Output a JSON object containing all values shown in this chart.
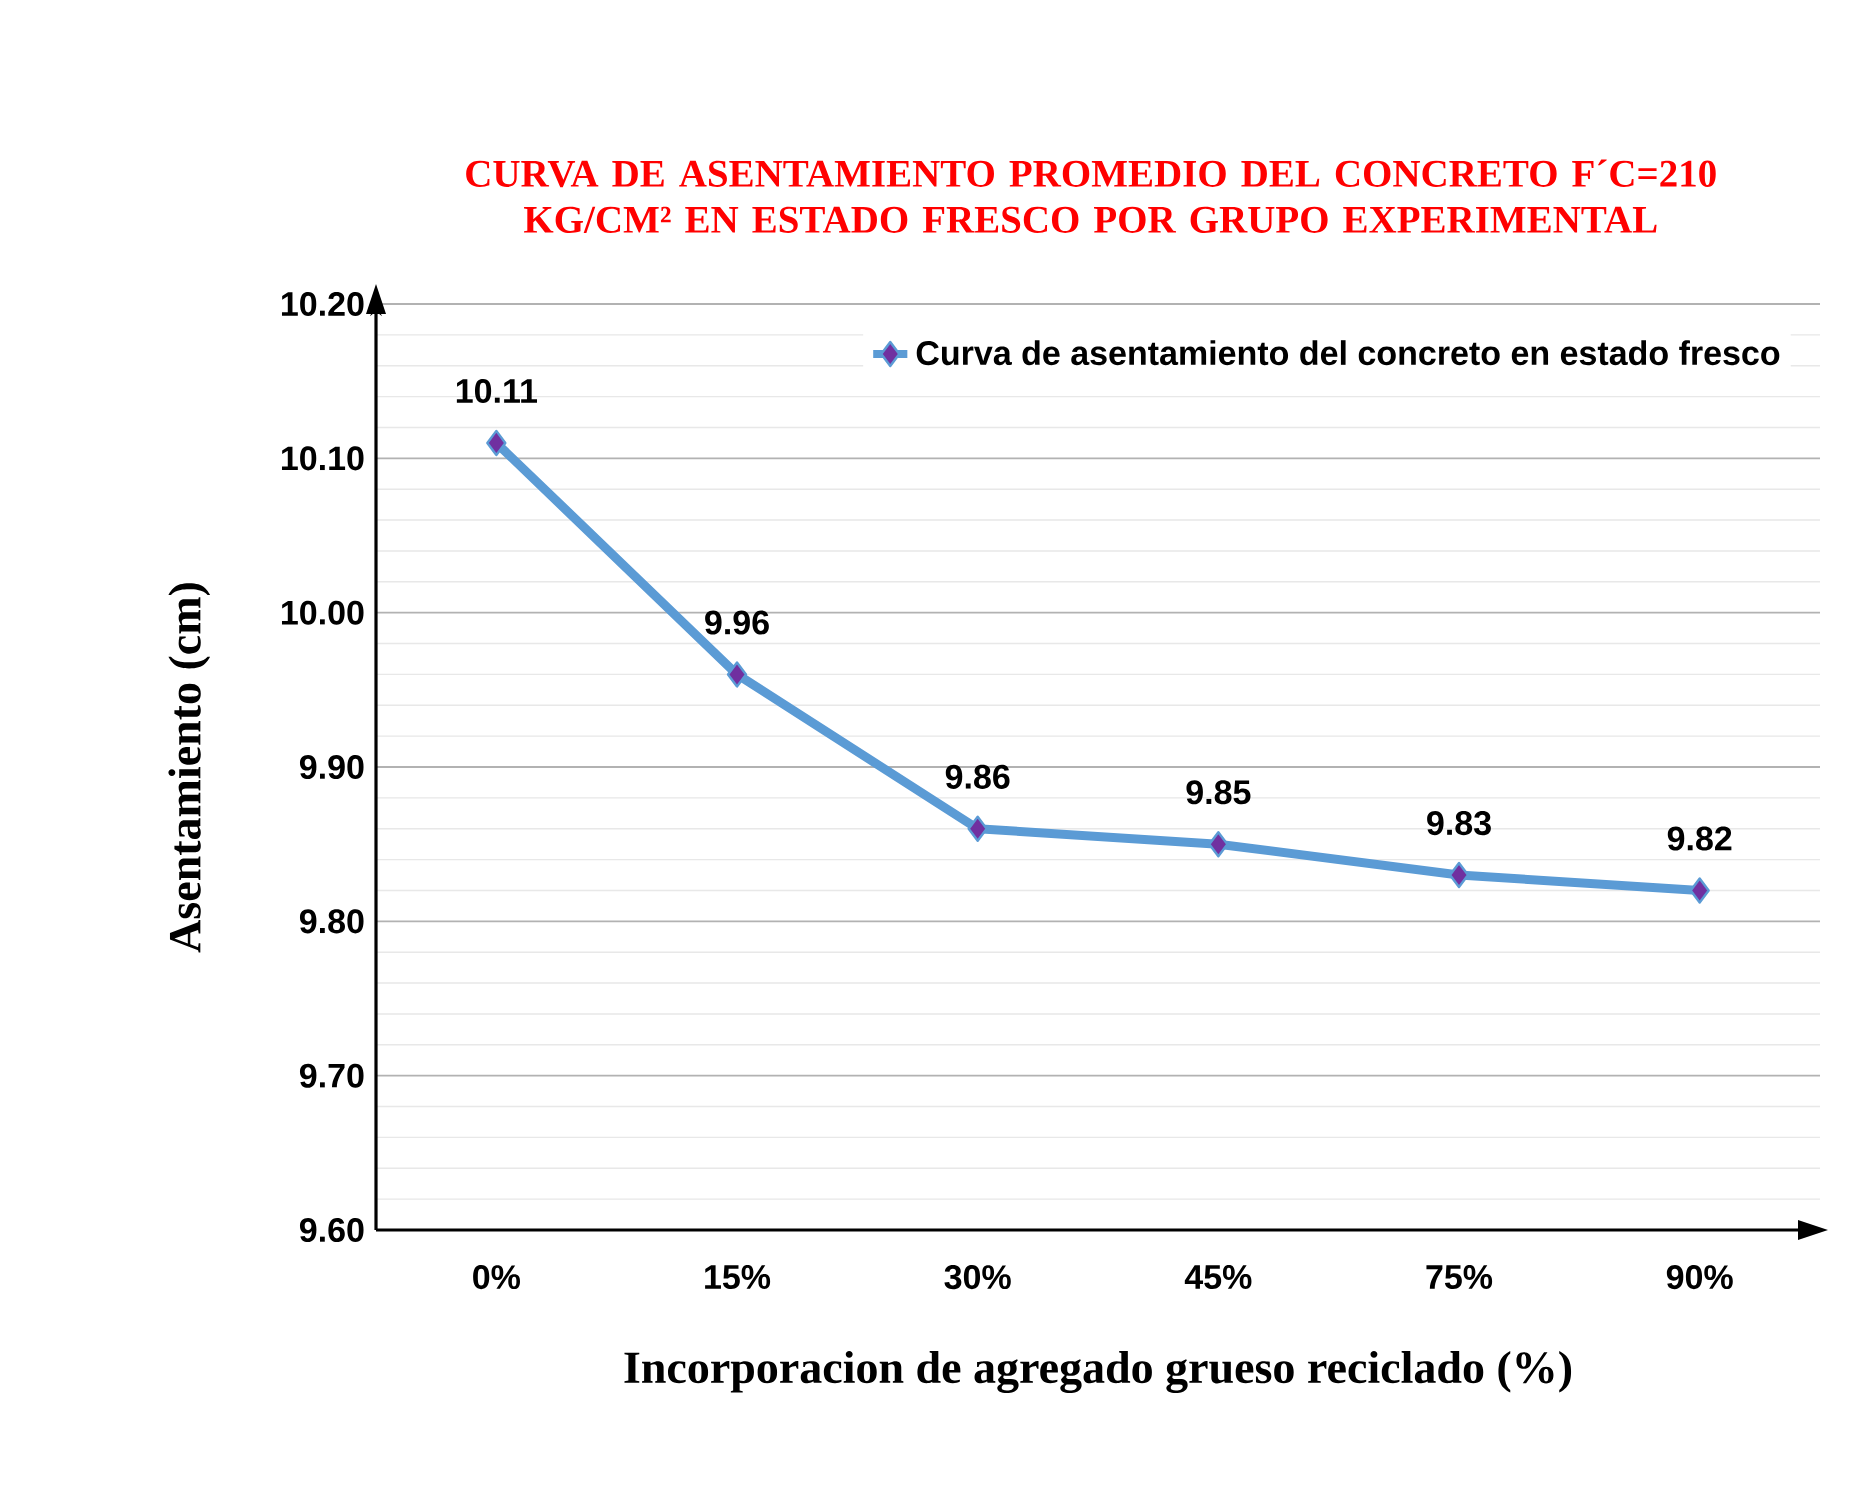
{
  "chart_data": {
    "type": "line",
    "title": "CURVA DE ASENTAMIENTO PROMEDIO DEL CONCRETO F´C=210 KG/CM² EN ESTADO FRESCO POR GRUPO EXPERIMENTAL",
    "xlabel": "Incorporacion de agregado grueso reciclado (%)",
    "ylabel": "Asentamiento (cm)",
    "categories": [
      "0%",
      "15%",
      "30%",
      "45%",
      "75%",
      "90%"
    ],
    "series": [
      {
        "name": "Curva de asentamiento del concreto en estado fresco",
        "color": "#5b9bd5",
        "values": [
          10.11,
          9.96,
          9.86,
          9.85,
          9.83,
          9.82
        ]
      }
    ],
    "ylim": [
      9.6,
      10.2
    ],
    "yticks": [
      {
        "value": 9.6,
        "label": "9.60"
      },
      {
        "value": 9.7,
        "label": "9.70"
      },
      {
        "value": 9.8,
        "label": "9.80"
      },
      {
        "value": 9.9,
        "label": "9.90"
      },
      {
        "value": 10.0,
        "label": "10.00"
      },
      {
        "value": 10.1,
        "label": "10.10"
      },
      {
        "value": 10.2,
        "label": "10.20"
      }
    ],
    "grid": "y",
    "legend": "top right",
    "marker": "diamond",
    "line_style": "solid",
    "data_labels": true
  }
}
